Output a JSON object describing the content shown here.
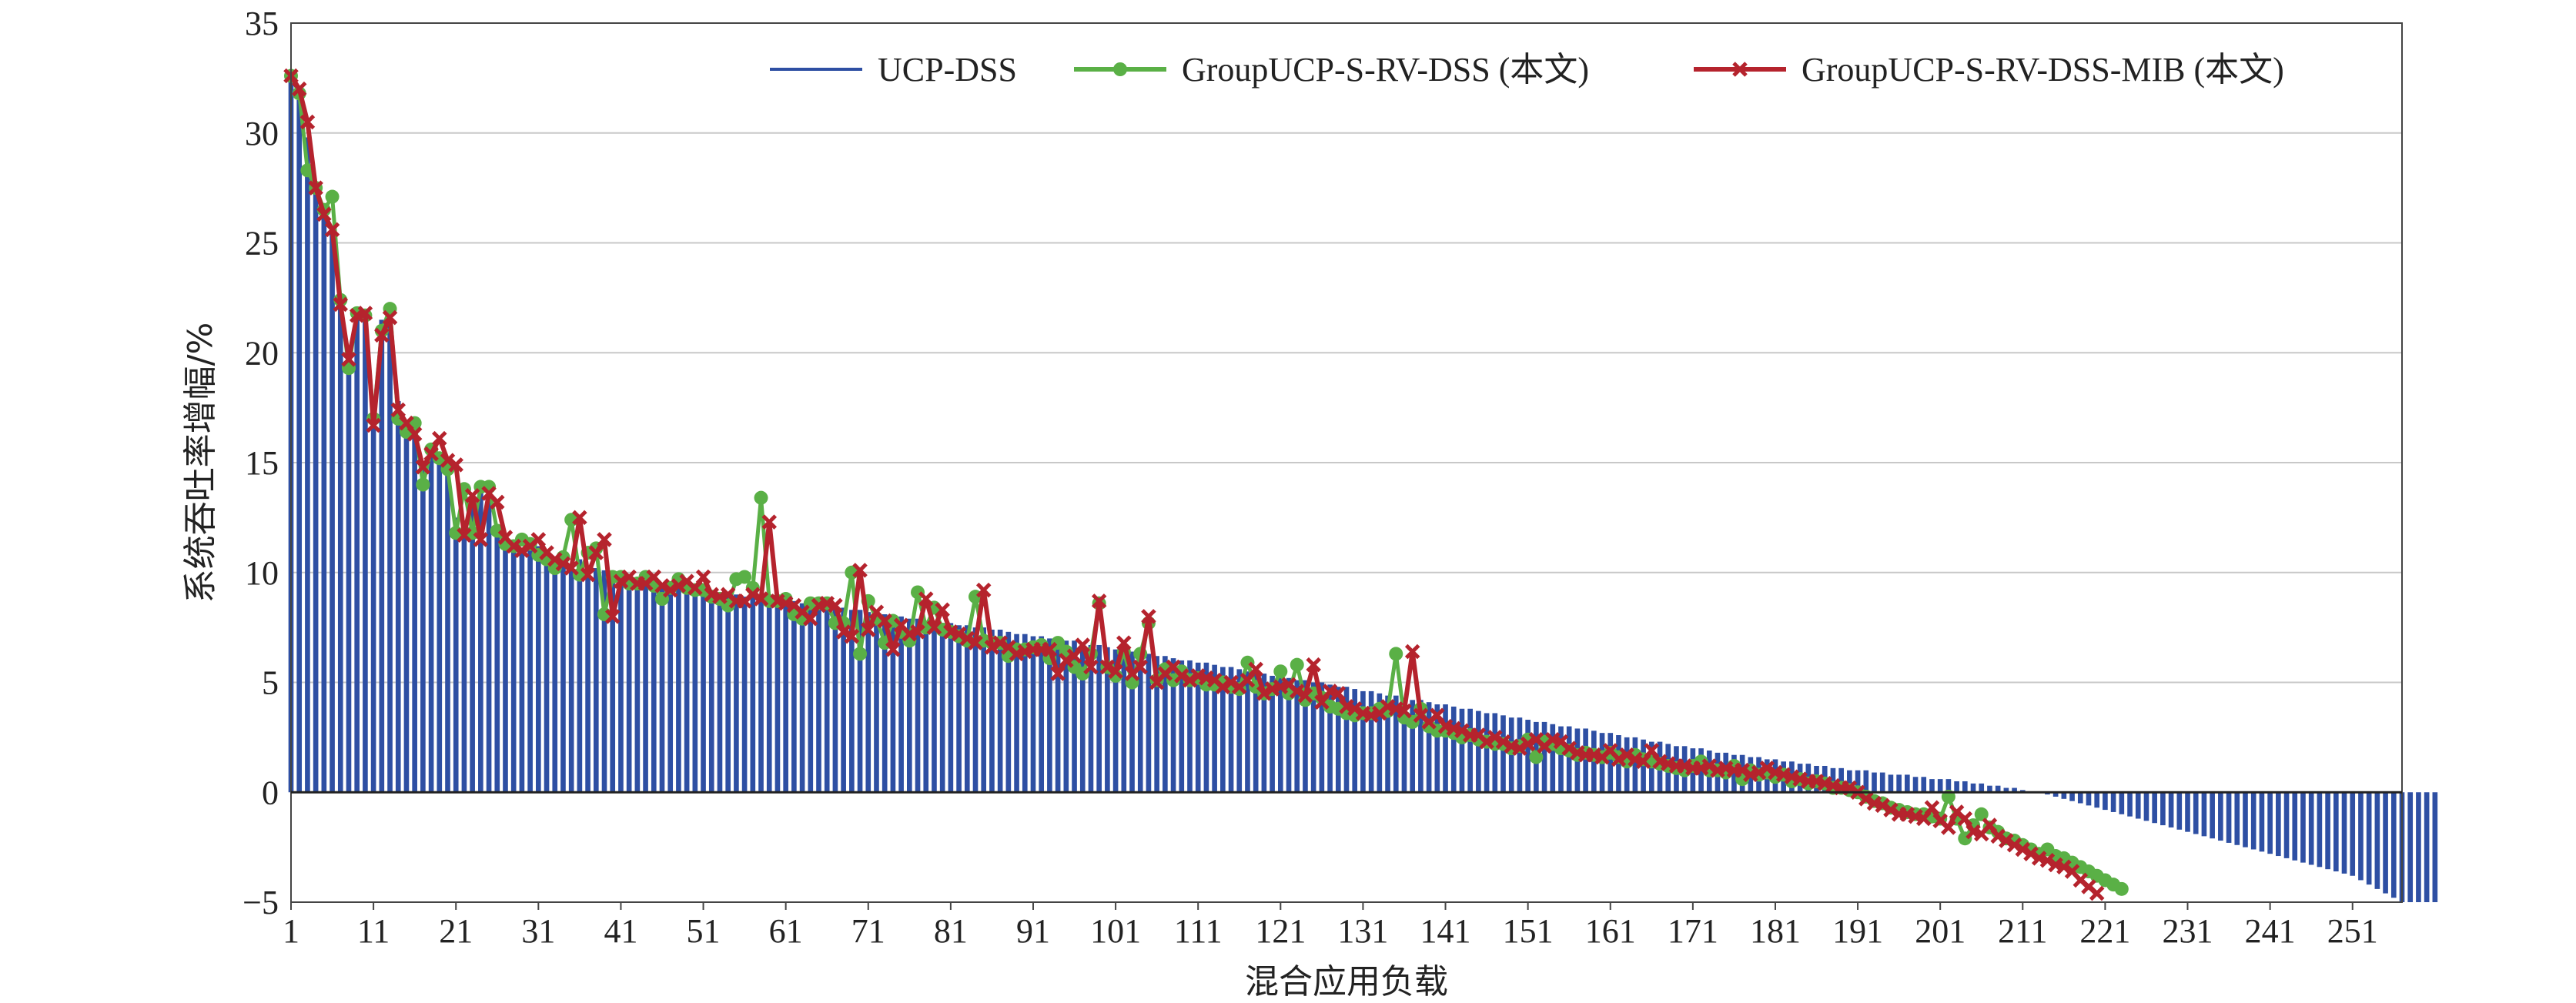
{
  "chart_data": {
    "type": "bar+line",
    "title": "",
    "xlabel": "混合应用负载",
    "ylabel": "系统吞吐率增幅/%",
    "ylim": [
      -5,
      35
    ],
    "yticks": [
      "−5",
      "0",
      "5",
      "10",
      "15",
      "20",
      "25",
      "30",
      "35"
    ],
    "xticks": [
      "1",
      "11",
      "21",
      "31",
      "41",
      "51",
      "61",
      "71",
      "81",
      "91",
      "101",
      "111",
      "121",
      "131",
      "141",
      "151",
      "161",
      "171",
      "181",
      "191",
      "201",
      "211",
      "221",
      "231",
      "241",
      "251"
    ],
    "x_range": [
      1,
      257
    ],
    "grid": "horizontal",
    "legend_position": "top-right",
    "colors": {
      "bars": "#2e4fa3",
      "green": "#5ab046",
      "red": "#b5232d",
      "grid": "#c8c8c8",
      "axis": "#444444"
    },
    "series": [
      {
        "name": "UCP-DSS",
        "kind": "bar",
        "values": [
          32.4,
          31.5,
          29.8,
          27.6,
          26.4,
          25.5,
          22.6,
          20.1,
          21.6,
          21.9,
          17.6,
          21.5,
          21.7,
          17.8,
          16.9,
          16.2,
          14.7,
          15.4,
          15.4,
          14.9,
          12.5,
          12.2,
          13.5,
          13.7,
          13.6,
          12.1,
          11.3,
          11.2,
          11.1,
          11.3,
          11.2,
          10.8,
          10.7,
          10.6,
          10.4,
          10.6,
          10.2,
          10.2,
          10.1,
          10.0,
          9.8,
          9.8,
          9.7,
          9.6,
          9.6,
          9.5,
          9.4,
          9.4,
          9.3,
          9.3,
          9.2,
          9.1,
          9.1,
          9.0,
          9.0,
          8.9,
          8.9,
          8.8,
          8.8,
          8.8,
          8.7,
          8.7,
          8.6,
          8.6,
          8.5,
          8.5,
          8.4,
          8.4,
          8.3,
          8.3,
          8.2,
          8.2,
          8.1,
          8.0,
          8.0,
          7.9,
          7.9,
          7.8,
          7.8,
          7.7,
          7.7,
          7.6,
          7.6,
          7.5,
          7.5,
          7.4,
          7.4,
          7.3,
          7.2,
          7.2,
          7.1,
          7.1,
          7.0,
          7.0,
          6.9,
          6.9,
          6.8,
          6.7,
          6.7,
          6.6,
          6.5,
          6.5,
          6.4,
          6.4,
          6.3,
          6.2,
          6.2,
          6.1,
          6.0,
          6.0,
          5.9,
          5.9,
          5.8,
          5.7,
          5.7,
          5.6,
          5.5,
          5.5,
          5.4,
          5.3,
          5.3,
          5.2,
          5.1,
          5.1,
          5.0,
          5.0,
          4.9,
          4.8,
          4.8,
          4.7,
          4.6,
          4.6,
          4.5,
          4.4,
          4.4,
          4.3,
          4.2,
          4.2,
          4.1,
          4.0,
          4.0,
          3.9,
          3.8,
          3.8,
          3.7,
          3.6,
          3.6,
          3.5,
          3.4,
          3.4,
          3.3,
          3.2,
          3.2,
          3.1,
          3.0,
          3.0,
          2.9,
          2.9,
          2.8,
          2.7,
          2.7,
          2.6,
          2.5,
          2.5,
          2.4,
          2.3,
          2.3,
          2.2,
          2.1,
          2.1,
          2.0,
          2.0,
          1.9,
          1.8,
          1.8,
          1.7,
          1.7,
          1.6,
          1.6,
          1.5,
          1.5,
          1.4,
          1.4,
          1.3,
          1.3,
          1.2,
          1.2,
          1.1,
          1.1,
          1.0,
          1.0,
          1.0,
          0.9,
          0.9,
          0.8,
          0.8,
          0.8,
          0.7,
          0.7,
          0.6,
          0.6,
          0.6,
          0.5,
          0.5,
          0.4,
          0.4,
          0.3,
          0.3,
          0.2,
          0.2,
          0.1,
          0.0,
          0.0,
          -0.1,
          -0.2,
          -0.3,
          -0.4,
          -0.5,
          -0.6,
          -0.7,
          -0.8,
          -0.9,
          -1.0,
          -1.1,
          -1.2,
          -1.3,
          -1.4,
          -1.5,
          -1.6,
          -1.7,
          -1.8,
          -1.9,
          -2.0,
          -2.1,
          -2.2,
          -2.3,
          -2.4,
          -2.5,
          -2.6,
          -2.7,
          -2.8,
          -2.9,
          -3.0,
          -3.1,
          -3.2,
          -3.3,
          -3.4,
          -3.5,
          -3.6,
          -3.7,
          -3.8,
          -4.0,
          -4.2,
          -4.4,
          -4.6,
          -4.8,
          -5.0,
          -5.0,
          -5.0,
          -5.0,
          -5.0
        ]
      },
      {
        "name": "GroupUCP-S-RV-DSS (本文)",
        "kind": "line",
        "values": [
          32.6,
          31.8,
          28.3,
          27.5,
          26.5,
          27.1,
          22.4,
          19.3,
          21.8,
          21.7,
          17.0,
          21.0,
          22.0,
          17.0,
          16.4,
          16.8,
          14.0,
          15.6,
          15.2,
          14.7,
          11.8,
          13.8,
          11.8,
          13.9,
          13.9,
          11.9,
          11.3,
          11.2,
          11.5,
          11.3,
          10.8,
          10.6,
          10.2,
          10.7,
          12.4,
          9.9,
          10.9,
          11.1,
          8.1,
          9.8,
          9.8,
          9.5,
          9.5,
          9.8,
          9.4,
          8.8,
          9.3,
          9.7,
          9.3,
          9.2,
          9.2,
          8.9,
          8.8,
          8.5,
          9.7,
          9.8,
          9.3,
          13.4,
          8.7,
          8.7,
          8.8,
          8.1,
          7.9,
          8.6,
          8.6,
          8.6,
          7.7,
          7.7,
          10.0,
          6.3,
          8.7,
          7.9,
          6.8,
          7.8,
          7.3,
          6.9,
          9.1,
          7.5,
          8.4,
          7.4,
          7.3,
          7.1,
          6.9,
          8.9,
          6.9,
          6.8,
          6.8,
          6.2,
          6.5,
          6.5,
          6.6,
          6.7,
          6.1,
          6.8,
          6.4,
          5.7,
          5.4,
          6.3,
          8.6,
          5.7,
          5.3,
          6.4,
          5.0,
          6.3,
          7.7,
          5.1,
          5.6,
          5.1,
          5.5,
          5.1,
          5.2,
          4.9,
          4.9,
          5.0,
          4.8,
          4.7,
          5.9,
          4.8,
          4.5,
          4.7,
          5.5,
          4.5,
          5.8,
          4.2,
          4.5,
          4.3,
          3.9,
          3.8,
          3.6,
          3.5,
          3.6,
          3.6,
          3.8,
          3.7,
          6.3,
          3.4,
          3.2,
          3.8,
          3.0,
          2.8,
          2.8,
          2.7,
          2.5,
          2.6,
          2.4,
          2.3,
          2.2,
          2.2,
          2.0,
          2.1,
          2.4,
          1.6,
          2.3,
          2.2,
          2.0,
          1.9,
          1.7,
          1.8,
          1.7,
          1.6,
          1.8,
          1.6,
          1.4,
          1.7,
          1.5,
          1.4,
          1.3,
          1.2,
          1.1,
          1.0,
          1.2,
          1.4,
          1.0,
          1.0,
          0.9,
          1.2,
          0.6,
          1.0,
          0.8,
          0.9,
          0.7,
          0.8,
          0.5,
          0.6,
          0.4,
          0.5,
          0.4,
          0.2,
          0.2,
          0.1,
          0.0,
          -0.2,
          -0.4,
          -0.5,
          -0.7,
          -0.8,
          -0.9,
          -1.0,
          -1.0,
          -1.1,
          -1.2,
          -0.2,
          -1.2,
          -2.1,
          -1.5,
          -1.0,
          -1.6,
          -1.8,
          -2.1,
          -2.2,
          -2.4,
          -2.6,
          -2.8,
          -2.6,
          -2.9,
          -3.0,
          -3.2,
          -3.4,
          -3.6,
          -3.8,
          -4.0,
          -4.2,
          -4.4
        ]
      },
      {
        "name": "GroupUCP-S-RV-DSS-MIB (本文)",
        "kind": "line",
        "values": [
          32.6,
          32.0,
          30.5,
          27.5,
          26.3,
          25.6,
          22.2,
          19.7,
          21.7,
          21.8,
          16.7,
          20.8,
          21.6,
          17.4,
          16.8,
          16.3,
          14.8,
          15.4,
          16.1,
          15.1,
          14.9,
          11.7,
          13.5,
          11.5,
          13.6,
          13.2,
          11.6,
          11.2,
          11.0,
          11.2,
          11.5,
          10.9,
          10.6,
          10.4,
          10.2,
          12.5,
          9.9,
          10.9,
          11.5,
          8.0,
          9.6,
          9.8,
          9.5,
          9.5,
          9.8,
          9.4,
          9.2,
          9.4,
          9.6,
          9.3,
          9.8,
          9.0,
          8.9,
          9.0,
          8.7,
          8.7,
          9.0,
          8.8,
          12.3,
          8.7,
          8.6,
          8.5,
          8.2,
          7.9,
          8.5,
          8.6,
          8.5,
          7.3,
          7.1,
          10.1,
          7.4,
          8.2,
          7.8,
          6.5,
          7.6,
          7.2,
          7.3,
          8.8,
          7.5,
          8.3,
          7.3,
          7.2,
          7.0,
          6.8,
          9.2,
          6.6,
          6.8,
          6.6,
          6.3,
          6.4,
          6.5,
          6.5,
          6.5,
          5.4,
          6.0,
          6.2,
          6.7,
          5.7,
          8.7,
          5.7,
          5.5,
          6.8,
          5.4,
          5.7,
          8.0,
          5.0,
          5.4,
          5.7,
          5.3,
          5.1,
          5.3,
          5.2,
          5.1,
          4.8,
          5.0,
          4.8,
          5.1,
          5.6,
          4.5,
          4.7,
          4.8,
          4.9,
          4.6,
          4.4,
          5.8,
          4.1,
          4.6,
          4.5,
          3.9,
          3.8,
          3.6,
          3.5,
          3.6,
          3.9,
          3.8,
          3.7,
          6.4,
          3.5,
          3.2,
          3.5,
          3.0,
          2.9,
          2.8,
          2.6,
          2.6,
          2.3,
          2.5,
          2.3,
          2.1,
          2.0,
          2.2,
          2.4,
          2.1,
          2.4,
          2.3,
          2.0,
          1.8,
          1.7,
          1.7,
          1.6,
          1.9,
          1.5,
          1.7,
          1.5,
          1.4,
          1.9,
          1.4,
          1.3,
          1.2,
          1.2,
          1.1,
          1.1,
          1.2,
          1.0,
          1.1,
          1.0,
          1.0,
          0.8,
          0.9,
          1.1,
          0.9,
          0.8,
          0.7,
          0.6,
          0.5,
          0.5,
          0.4,
          0.3,
          0.2,
          0.2,
          0.0,
          -0.3,
          -0.5,
          -0.6,
          -0.8,
          -1.0,
          -1.0,
          -1.1,
          -1.2,
          -0.7,
          -1.3,
          -1.6,
          -0.9,
          -1.2,
          -1.8,
          -1.9,
          -1.5,
          -2.0,
          -2.2,
          -2.4,
          -2.6,
          -2.8,
          -3.0,
          -3.1,
          -3.3,
          -3.4,
          -3.6,
          -4.0,
          -4.3,
          -4.6
        ]
      }
    ]
  }
}
